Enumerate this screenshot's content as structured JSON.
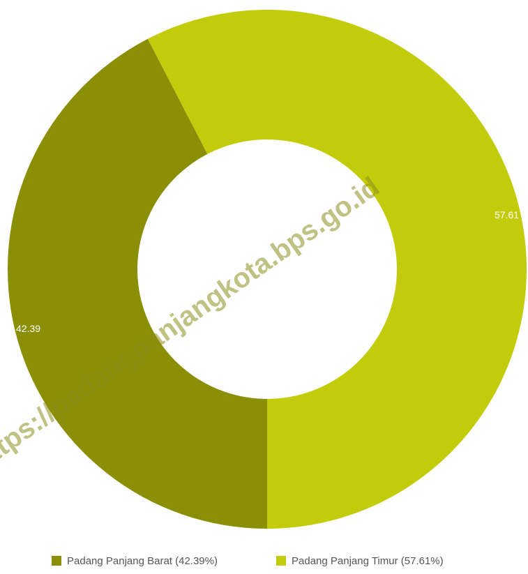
{
  "chart_data": {
    "type": "pie",
    "variant": "donut",
    "categories": [
      "Padang Panjang Barat",
      "Padang Panjang Timur"
    ],
    "values": [
      42.39,
      57.61
    ],
    "data_labels": [
      "42.39",
      "57.61"
    ],
    "legend_labels": [
      "Padang Panjang Barat (42.39%)",
      "Padang Panjang Timur (57.61%)"
    ],
    "colors": [
      "#8b8f06",
      "#c2cc0b"
    ],
    "start_at": "bottom",
    "legend_position": "bottom"
  },
  "watermark": {
    "text": "https://padangpanjangkota.bps.go.id"
  }
}
